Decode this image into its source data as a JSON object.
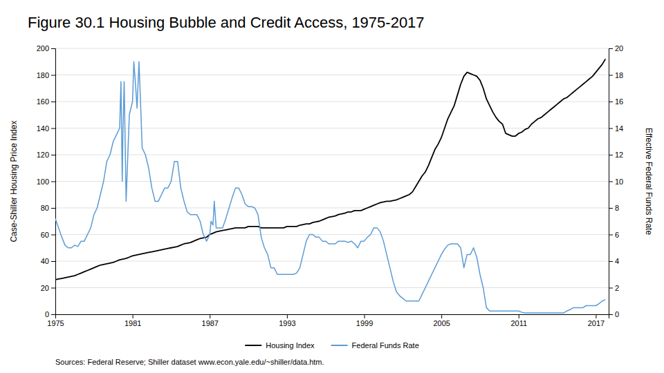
{
  "chart_data": {
    "type": "line",
    "title": "Figure 30.1 Housing Bubble and Credit Access, 1975-2017",
    "subtitle": "Sources: Federal Reserve; Shiller dataset www.econ.yale.edu/~shiller/data.htm.",
    "ylabel": "Case-Shiller Housing Price Index",
    "y2label": "Effective Federal Funds Rate",
    "xlim": [
      1975,
      2018
    ],
    "xticks": [
      1975,
      1981,
      1987,
      1993,
      1999,
      2005,
      2011,
      2017
    ],
    "ylim": [
      0,
      200
    ],
    "yticks": [
      0,
      20,
      40,
      60,
      80,
      100,
      120,
      140,
      160,
      180,
      200
    ],
    "y2lim": [
      0,
      20
    ],
    "y2ticks": [
      0,
      2,
      4,
      6,
      8,
      10,
      12,
      14,
      16,
      18,
      20
    ],
    "grid": true,
    "legend": "bottom",
    "series": [
      {
        "name": "Housing Index",
        "color": "#000000",
        "axis": "y",
        "x": [
          1975.0,
          1975.25,
          1975.5,
          1975.75,
          1976.0,
          1976.25,
          1976.5,
          1976.75,
          1977.0,
          1977.25,
          1977.5,
          1977.75,
          1978.0,
          1978.25,
          1978.5,
          1978.75,
          1979.0,
          1979.25,
          1979.5,
          1979.75,
          1980.0,
          1980.25,
          1980.5,
          1980.75,
          1981.0,
          1981.25,
          1981.5,
          1981.75,
          1982.0,
          1982.25,
          1982.5,
          1982.75,
          1983.0,
          1983.25,
          1983.5,
          1983.75,
          1984.0,
          1984.25,
          1984.5,
          1984.75,
          1985.0,
          1985.25,
          1985.5,
          1985.75,
          1986.0,
          1986.25,
          1986.5,
          1986.75,
          1987.0,
          1987.25,
          1987.5,
          1987.75,
          1988.0,
          1988.25,
          1988.5,
          1988.75,
          1989.0,
          1989.25,
          1989.5,
          1989.75,
          1990.0,
          1990.25,
          1990.5,
          1990.75,
          1991.0,
          1991.25,
          1991.5,
          1991.75,
          1992.0,
          1992.25,
          1992.5,
          1992.75,
          1993.0,
          1993.25,
          1993.5,
          1993.75,
          1994.0,
          1994.25,
          1994.5,
          1994.75,
          1995.0,
          1995.25,
          1995.5,
          1995.75,
          1996.0,
          1996.25,
          1996.5,
          1996.75,
          1997.0,
          1997.25,
          1997.5,
          1997.75,
          1998.0,
          1998.25,
          1998.5,
          1998.75,
          1999.0,
          1999.25,
          1999.5,
          1999.75,
          2000.0,
          2000.25,
          2000.5,
          2000.75,
          2001.0,
          2001.25,
          2001.5,
          2001.75,
          2002.0,
          2002.25,
          2002.5,
          2002.75,
          2003.0,
          2003.25,
          2003.5,
          2003.75,
          2004.0,
          2004.25,
          2004.5,
          2004.75,
          2005.0,
          2005.25,
          2005.5,
          2005.75,
          2006.0,
          2006.25,
          2006.5,
          2006.75,
          2007.0,
          2007.25,
          2007.5,
          2007.75,
          2008.0,
          2008.25,
          2008.5,
          2008.75,
          2009.0,
          2009.25,
          2009.5,
          2009.75,
          2010.0,
          2010.25,
          2010.5,
          2010.75,
          2011.0,
          2011.25,
          2011.5,
          2011.75,
          2012.0,
          2012.25,
          2012.5,
          2012.75,
          2013.0,
          2013.25,
          2013.5,
          2013.75,
          2014.0,
          2014.25,
          2014.5,
          2014.75,
          2015.0,
          2015.25,
          2015.5,
          2015.75,
          2016.0,
          2016.25,
          2016.5,
          2016.75,
          2017.0,
          2017.25,
          2017.5,
          2017.75
        ],
        "values": [
          26,
          26.5,
          27,
          27.5,
          28,
          28.5,
          29,
          30,
          31,
          32,
          33,
          34,
          35,
          36,
          37,
          37.5,
          38,
          38.5,
          39,
          40,
          41,
          41.5,
          42,
          43,
          44,
          44.5,
          45,
          45.5,
          46,
          46.5,
          47,
          47.5,
          48,
          48.5,
          49,
          49.5,
          50,
          50.5,
          51,
          52,
          53,
          53.5,
          54,
          55,
          56,
          57,
          57.5,
          58,
          60,
          61,
          62,
          62.5,
          63,
          63.5,
          64,
          64.5,
          65,
          65,
          65,
          65,
          66,
          66,
          66,
          66,
          65,
          65,
          65,
          65,
          65,
          65,
          65,
          65,
          66,
          66,
          66,
          66,
          67,
          67.5,
          68,
          68,
          69,
          69.5,
          70,
          71,
          72,
          73,
          73.5,
          74,
          75,
          75.5,
          76,
          77,
          77,
          78,
          78,
          78,
          79,
          80,
          81,
          82,
          83,
          84,
          84.5,
          85,
          85,
          85.5,
          86,
          87,
          88,
          89,
          90,
          92,
          96,
          100,
          104,
          107,
          112,
          118,
          124,
          128,
          133,
          140,
          147,
          152,
          157,
          165,
          173,
          179,
          182,
          181,
          180,
          179,
          176,
          170,
          162,
          157,
          152,
          148,
          145,
          143,
          136,
          135,
          134,
          134,
          136,
          137,
          139,
          140,
          143,
          145,
          147,
          148,
          150,
          152,
          154,
          156,
          158,
          160,
          162,
          163,
          165,
          167,
          169,
          171,
          173,
          175,
          177,
          179,
          182,
          185,
          188,
          192
        ]
      },
      {
        "name": "Federal Funds Rate",
        "color": "#5b9bd5",
        "axis": "y2",
        "x": [
          1975.0,
          1975.25,
          1975.5,
          1975.75,
          1976.0,
          1976.25,
          1976.5,
          1976.75,
          1977.0,
          1977.25,
          1977.5,
          1977.75,
          1978.0,
          1978.25,
          1978.5,
          1978.75,
          1979.0,
          1979.25,
          1979.5,
          1979.75,
          1980.0,
          1980.1,
          1980.2,
          1980.25,
          1980.35,
          1980.5,
          1980.75,
          1981.0,
          1981.1,
          1981.25,
          1981.35,
          1981.5,
          1981.6,
          1981.75,
          1982.0,
          1982.25,
          1982.5,
          1982.75,
          1983.0,
          1983.25,
          1983.5,
          1983.75,
          1984.0,
          1984.25,
          1984.5,
          1984.75,
          1985.0,
          1985.25,
          1985.5,
          1985.75,
          1986.0,
          1986.25,
          1986.5,
          1986.75,
          1987.0,
          1987.1,
          1987.25,
          1987.35,
          1987.5,
          1987.75,
          1988.0,
          1988.25,
          1988.5,
          1988.75,
          1989.0,
          1989.25,
          1989.5,
          1989.75,
          1990.0,
          1990.25,
          1990.5,
          1990.75,
          1991.0,
          1991.25,
          1991.5,
          1991.75,
          1992.0,
          1992.25,
          1992.5,
          1992.75,
          1993.0,
          1993.25,
          1993.5,
          1993.75,
          1994.0,
          1994.25,
          1994.5,
          1994.75,
          1995.0,
          1995.25,
          1995.5,
          1995.75,
          1996.0,
          1996.25,
          1996.5,
          1996.75,
          1997.0,
          1997.25,
          1997.5,
          1997.75,
          1998.0,
          1998.25,
          1998.5,
          1998.75,
          1999.0,
          1999.25,
          1999.5,
          1999.75,
          2000.0,
          2000.25,
          2000.5,
          2000.75,
          2001.0,
          2001.25,
          2001.5,
          2001.75,
          2002.0,
          2002.25,
          2002.5,
          2002.75,
          2003.0,
          2003.25,
          2003.5,
          2003.75,
          2004.0,
          2004.25,
          2004.5,
          2004.75,
          2005.0,
          2005.25,
          2005.5,
          2005.75,
          2006.0,
          2006.25,
          2006.5,
          2006.75,
          2007.0,
          2007.25,
          2007.5,
          2007.75,
          2008.0,
          2008.25,
          2008.5,
          2008.75,
          2009.0,
          2009.25,
          2009.5,
          2009.75,
          2010.0,
          2010.25,
          2010.5,
          2010.75,
          2011.0,
          2011.25,
          2011.5,
          2011.75,
          2012.0,
          2012.25,
          2012.5,
          2012.75,
          2013.0,
          2013.25,
          2013.5,
          2013.75,
          2014.0,
          2014.25,
          2014.5,
          2014.75,
          2015.0,
          2015.25,
          2015.5,
          2015.75,
          2016.0,
          2016.25,
          2016.5,
          2016.75,
          2017.0,
          2017.25,
          2017.5,
          2017.75
        ],
        "values": [
          7.2,
          6.5,
          5.8,
          5.2,
          5.0,
          5.0,
          5.2,
          5.1,
          5.5,
          5.5,
          6.0,
          6.5,
          7.5,
          8.0,
          9.0,
          10.0,
          11.5,
          12.0,
          13.0,
          13.5,
          14.0,
          17.5,
          10.0,
          13.5,
          17.5,
          8.5,
          15.0,
          16.0,
          19.0,
          17.0,
          15.5,
          19.0,
          16.5,
          12.5,
          12.0,
          11.0,
          9.5,
          8.5,
          8.5,
          9.0,
          9.5,
          9.5,
          10.0,
          11.5,
          11.5,
          9.5,
          8.5,
          7.7,
          7.5,
          7.5,
          7.5,
          7.0,
          6.0,
          5.5,
          6.0,
          7.0,
          6.7,
          8.5,
          6.5,
          6.5,
          6.5,
          7.2,
          8.0,
          8.8,
          9.5,
          9.5,
          9.0,
          8.3,
          8.1,
          8.1,
          8.0,
          7.5,
          5.8,
          5.0,
          4.5,
          3.5,
          3.5,
          3.0,
          3.0,
          3.0,
          3.0,
          3.0,
          3.0,
          3.1,
          3.5,
          4.5,
          5.5,
          6.0,
          6.0,
          5.8,
          5.8,
          5.5,
          5.5,
          5.3,
          5.3,
          5.3,
          5.5,
          5.5,
          5.5,
          5.4,
          5.5,
          5.3,
          5.0,
          5.5,
          5.5,
          5.8,
          6.0,
          6.5,
          6.5,
          6.2,
          5.5,
          4.5,
          3.5,
          2.5,
          1.7,
          1.4,
          1.2,
          1.0,
          1.0,
          1.0,
          1.0,
          1.0,
          1.5,
          2.0,
          2.5,
          3.0,
          3.5,
          4.0,
          4.5,
          4.9,
          5.2,
          5.3,
          5.3,
          5.3,
          5.0,
          3.5,
          4.5,
          4.5,
          5.0,
          4.3,
          3.0,
          2.0,
          0.5,
          0.25,
          0.25,
          0.25,
          0.25,
          0.25,
          0.25,
          0.25,
          0.25,
          0.25,
          0.25,
          0.15,
          0.1,
          0.1,
          0.1,
          0.1,
          0.1,
          0.1,
          0.1,
          0.1,
          0.1,
          0.1,
          0.1,
          0.1,
          0.1,
          0.25,
          0.35,
          0.5,
          0.5,
          0.5,
          0.5,
          0.65,
          0.65,
          0.65,
          0.65,
          0.8,
          1.0,
          1.1
        ]
      }
    ]
  }
}
